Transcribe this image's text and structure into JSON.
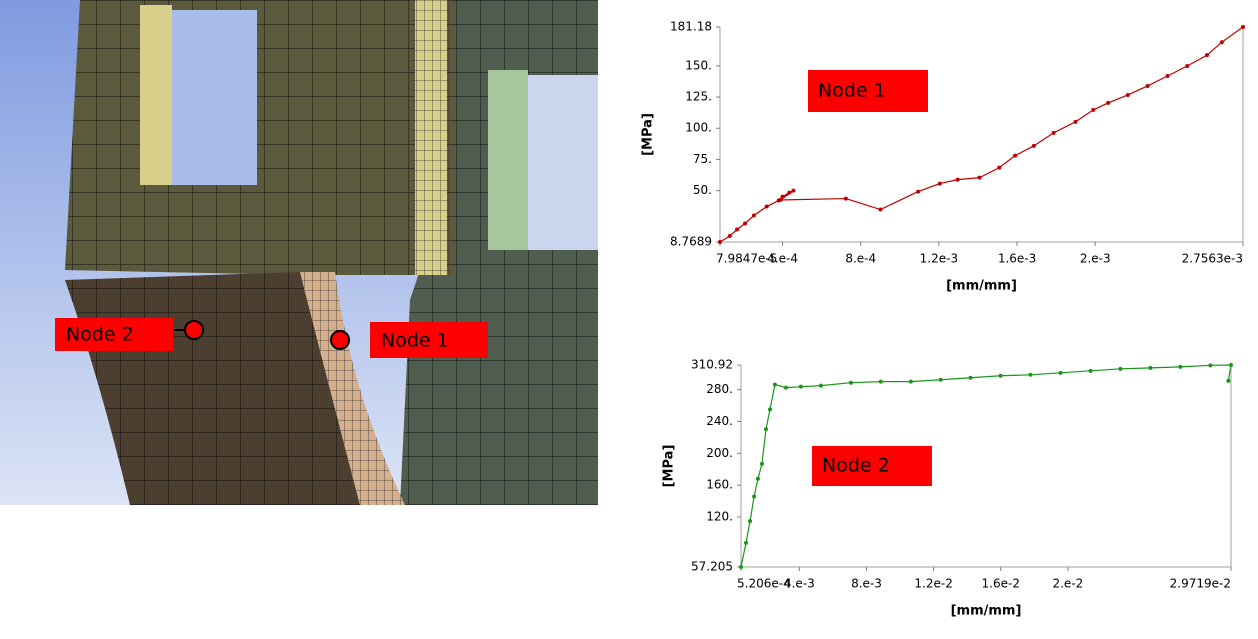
{
  "chart_data": [
    {
      "type": "line",
      "annotation": "Node 1",
      "x_label": "[mm/mm]",
      "y_label": "[MPa]",
      "color": "#c00000",
      "xlim": [
        7.9847e-05,
        0.0027563
      ],
      "ylim": [
        8.7689,
        181.18
      ],
      "xticks": [
        {
          "value": 7.9847e-05,
          "label": "7.9847e-5"
        },
        {
          "value": 0.0004,
          "label": "4.e-4"
        },
        {
          "value": 0.0008,
          "label": "8.e-4"
        },
        {
          "value": 0.0012,
          "label": "1.2e-3"
        },
        {
          "value": 0.0016,
          "label": "1.6e-3"
        },
        {
          "value": 0.002,
          "label": "2.e-3"
        },
        {
          "value": 0.0027563,
          "label": "2.7563e-3"
        }
      ],
      "yticks": [
        8.7689,
        {
          "value": 50,
          "label": "50."
        },
        {
          "value": 75,
          "label": "75."
        },
        {
          "value": 100,
          "label": "100."
        },
        {
          "value": 125,
          "label": "125."
        },
        {
          "value": 150,
          "label": "150."
        },
        181.18
      ],
      "x": [
        7.9847e-05,
        0.00013,
        0.000167,
        0.000208,
        0.000253,
        0.000319,
        0.00038,
        0.0004,
        0.000435,
        0.000456,
        0.00039,
        0.000724,
        0.000901,
        0.001094,
        0.001205,
        0.001296,
        0.001408,
        0.001509,
        0.00159,
        0.001686,
        0.001787,
        0.001899,
        0.00199,
        0.002066,
        0.002167,
        0.002268,
        0.00237,
        0.002471,
        0.002572,
        0.002648,
        0.0027563
      ],
      "values": [
        8.7689,
        13.6,
        18.8,
        23.6,
        30,
        37.2,
        42,
        45.2,
        48.4,
        50,
        42.5,
        43.6,
        34.8,
        49.2,
        55.6,
        58.8,
        60.4,
        68.4,
        78,
        85.9,
        96.3,
        105.1,
        114.7,
        120.3,
        126.7,
        133.9,
        141.9,
        149.9,
        158.6,
        169,
        181.18
      ]
    },
    {
      "type": "line",
      "annotation": "Node 2",
      "x_label": "[mm/mm]",
      "y_label": "[MPa]",
      "color": "#1a961a",
      "xlim": [
        0.0005206,
        0.029719
      ],
      "ylim": [
        57.205,
        310.92
      ],
      "xticks": [
        {
          "value": 0.0005206,
          "label": "5.206e-4"
        },
        {
          "value": 0.004,
          "label": "4.e-3"
        },
        {
          "value": 0.008,
          "label": "8.e-3"
        },
        {
          "value": 0.012,
          "label": "1.2e-2"
        },
        {
          "value": 0.016,
          "label": "1.6e-2"
        },
        {
          "value": 0.02,
          "label": "2.e-2"
        },
        {
          "value": 0.029719,
          "label": "2.9719e-2"
        }
      ],
      "yticks": [
        57.205,
        {
          "value": 120,
          "label": "120."
        },
        {
          "value": 160,
          "label": "160."
        },
        {
          "value": 200,
          "label": "200."
        },
        {
          "value": 240,
          "label": "240."
        },
        {
          "value": 280,
          "label": "280."
        },
        310.92
      ],
      "x": [
        0.0005206,
        0.00082,
        0.00106,
        0.0013,
        0.00153,
        0.00177,
        0.00201,
        0.00225,
        0.00254,
        0.0032,
        0.00409,
        0.00528,
        0.00707,
        0.00885,
        0.01064,
        0.01242,
        0.0142,
        0.01599,
        0.01777,
        0.01956,
        0.02135,
        0.02313,
        0.02492,
        0.0267,
        0.02849,
        0.029719,
        0.02956
      ],
      "values": [
        57.205,
        87.5,
        114.8,
        145.8,
        168,
        186.8,
        230.3,
        255.2,
        286.2,
        282.5,
        283.7,
        285,
        288.7,
        290,
        290,
        292.4,
        294.9,
        297.4,
        298.6,
        301.1,
        303.6,
        306.1,
        307.3,
        308.6,
        310.5,
        310.92,
        291
      ]
    }
  ],
  "image_labels": [
    "Node 2",
    "Node 1"
  ]
}
